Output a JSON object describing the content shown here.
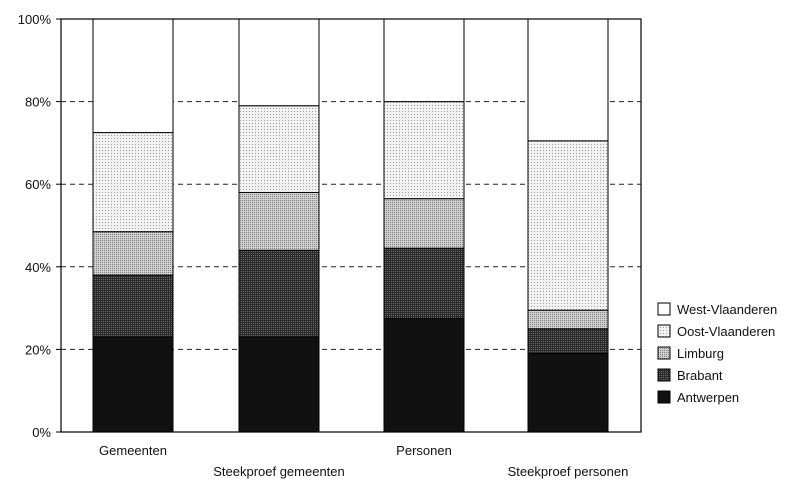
{
  "chart_data": {
    "type": "bar",
    "stacked": true,
    "percent": true,
    "categories": [
      "Gemeenten",
      "Steekproef gemeenten",
      "Personen",
      "Steekproef personen"
    ],
    "series": [
      {
        "name": "Antwerpen",
        "values": [
          23,
          23,
          27.5,
          19
        ],
        "color": "#111111"
      },
      {
        "name": "Brabant",
        "values": [
          15,
          21,
          17,
          6
        ],
        "color": "#3a3a3a"
      },
      {
        "name": "Limburg",
        "values": [
          10.5,
          14,
          12,
          4.5
        ],
        "color": "#b3b3b3"
      },
      {
        "name": "Oost-Vlaanderen",
        "values": [
          24,
          21,
          23.5,
          41
        ],
        "color": "#e2e2e2"
      },
      {
        "name": "West-Vlaanderen",
        "values": [
          27.5,
          21,
          20,
          29.5
        ],
        "color": "#ffffff"
      }
    ],
    "yticks": [
      "0%",
      "20%",
      "40%",
      "60%",
      "80%",
      "100%"
    ],
    "ylim": [
      0,
      100
    ],
    "grid": "dashed horizontal",
    "legend": "right",
    "legend_order": [
      "West-Vlaanderen",
      "Oost-Vlaanderen",
      "Limburg",
      "Brabant",
      "Antwerpen"
    ]
  }
}
